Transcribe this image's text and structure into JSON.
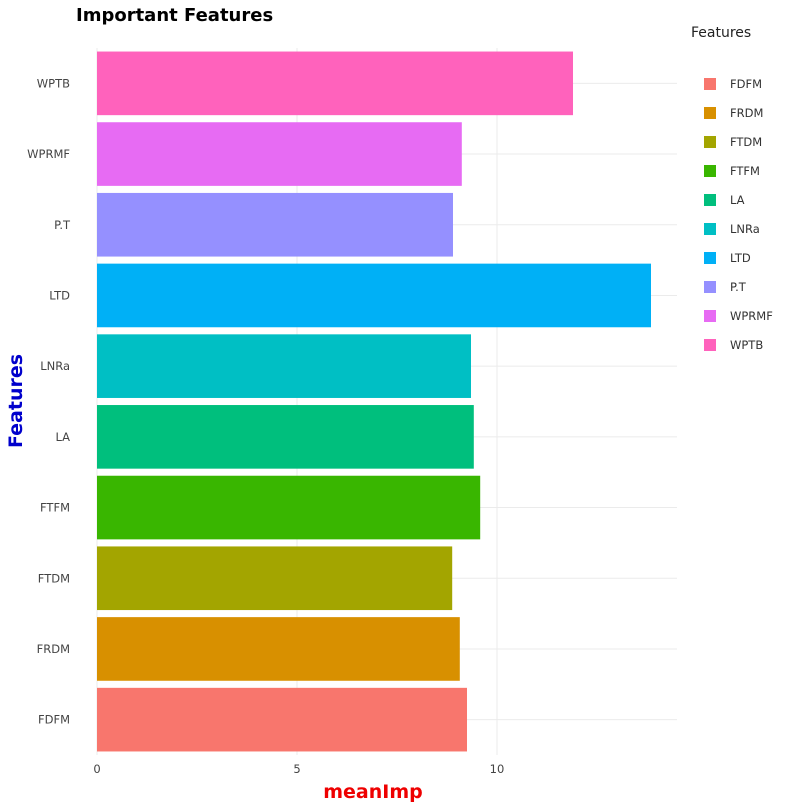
{
  "chart_data": {
    "type": "bar",
    "orientation": "horizontal",
    "title": "Important Features",
    "xlabel": "meanImp",
    "ylabel": "Features",
    "xlim": [
      0,
      14.5
    ],
    "xticks": [
      0,
      5,
      10
    ],
    "grid": true,
    "legend": {
      "title": "Features",
      "placement": "right"
    },
    "categories": [
      "FDFM",
      "FRDM",
      "FTDM",
      "FTFM",
      "LA",
      "LNRa",
      "LTD",
      "P.T",
      "WPRMF",
      "WPTB"
    ],
    "values": [
      9.25,
      9.07,
      8.88,
      9.58,
      9.42,
      9.35,
      13.85,
      8.9,
      9.12,
      11.9
    ],
    "colors": [
      "#F8766D",
      "#D89000",
      "#A3A500",
      "#39B600",
      "#00BF7D",
      "#00BFC4",
      "#00B0F6",
      "#9590FF",
      "#E76BF3",
      "#FF62BC"
    ]
  }
}
